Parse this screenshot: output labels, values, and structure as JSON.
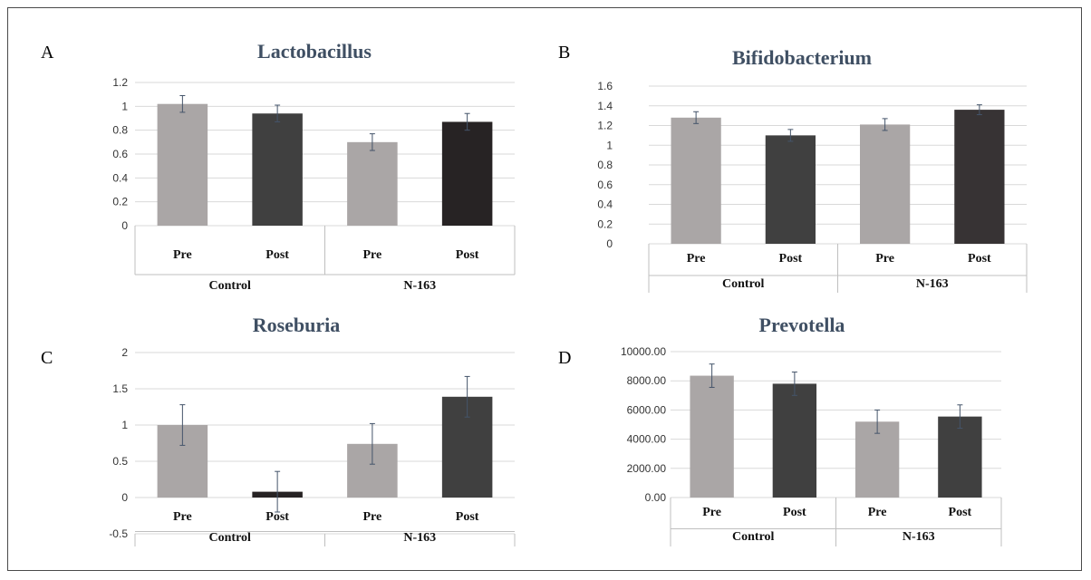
{
  "figure": {
    "colors": {
      "pre": "#aaa6a6",
      "post_dark": "#404040",
      "post_black": "#272324",
      "title": "#3f4f63",
      "error_bar": "#44546a",
      "grid": "#d9d9d9"
    }
  },
  "chart_data": [
    {
      "panel": "A",
      "type": "bar",
      "title": "Lactobacillus",
      "xlabel": "",
      "ylabel": "",
      "categories": [
        "Pre",
        "Post",
        "Pre",
        "Post"
      ],
      "groups": [
        "Control",
        "N-163"
      ],
      "values": [
        1.02,
        0.94,
        0.7,
        0.87
      ],
      "errors": [
        0.07,
        0.07,
        0.07,
        0.07
      ],
      "bar_colors": [
        "#aaa6a6",
        "#404040",
        "#aaa6a6",
        "#272324"
      ],
      "ylim": [
        0,
        1.2
      ],
      "yticks": [
        0,
        0.2,
        0.4,
        0.6,
        0.8,
        1,
        1.2
      ],
      "ytick_labels": [
        "0",
        "0.2",
        "0.4",
        "0.6",
        "0.8",
        "1",
        "1.2"
      ],
      "grid": true
    },
    {
      "panel": "B",
      "type": "bar",
      "title": "Bifidobacterium",
      "xlabel": "",
      "ylabel": "",
      "categories": [
        "Pre",
        "Post",
        "Pre",
        "Post"
      ],
      "groups": [
        "Control",
        "N-163"
      ],
      "values": [
        1.28,
        1.1,
        1.21,
        1.36
      ],
      "errors": [
        0.06,
        0.06,
        0.06,
        0.05
      ],
      "bar_colors": [
        "#aaa6a6",
        "#404040",
        "#aaa6a6",
        "#373334"
      ],
      "ylim": [
        0,
        1.6
      ],
      "yticks": [
        0,
        0.2,
        0.4,
        0.6,
        0.8,
        1,
        1.2,
        1.4,
        1.6
      ],
      "ytick_labels": [
        "0",
        "0.2",
        "0.4",
        "0.6",
        "0.8",
        "1",
        "1.2",
        "1.4",
        "1.6"
      ],
      "grid": true
    },
    {
      "panel": "C",
      "type": "bar",
      "title": "Roseburia",
      "xlabel": "",
      "ylabel": "",
      "categories": [
        "Pre",
        "Post",
        "Pre",
        "Post"
      ],
      "groups": [
        "Control",
        "N-163"
      ],
      "values": [
        1.0,
        0.08,
        0.74,
        1.39
      ],
      "errors": [
        0.28,
        0.28,
        0.28,
        0.28
      ],
      "bar_colors": [
        "#aaa6a6",
        "#272324",
        "#aaa6a6",
        "#404040"
      ],
      "ylim": [
        -0.5,
        2
      ],
      "yticks": [
        -0.5,
        0,
        0.5,
        1,
        1.5,
        2
      ],
      "ytick_labels": [
        "-0.5",
        "0",
        "0.5",
        "1",
        "1.5",
        "2"
      ],
      "grid": true
    },
    {
      "panel": "D",
      "type": "bar",
      "title": "Prevotella",
      "xlabel": "",
      "ylabel": "",
      "categories": [
        "Pre",
        "Post",
        "Pre",
        "Post"
      ],
      "groups": [
        "Control",
        "N-163"
      ],
      "values": [
        8350,
        7800,
        5200,
        5550
      ],
      "errors": [
        800,
        800,
        800,
        800
      ],
      "bar_colors": [
        "#aaa6a6",
        "#404040",
        "#aaa6a6",
        "#404040"
      ],
      "ylim": [
        0,
        10000
      ],
      "yticks": [
        0,
        2000,
        4000,
        6000,
        8000,
        10000
      ],
      "ytick_labels": [
        "0.00",
        "2000.00",
        "4000.00",
        "6000.00",
        "8000.00",
        "10000.00"
      ],
      "grid": true
    }
  ]
}
